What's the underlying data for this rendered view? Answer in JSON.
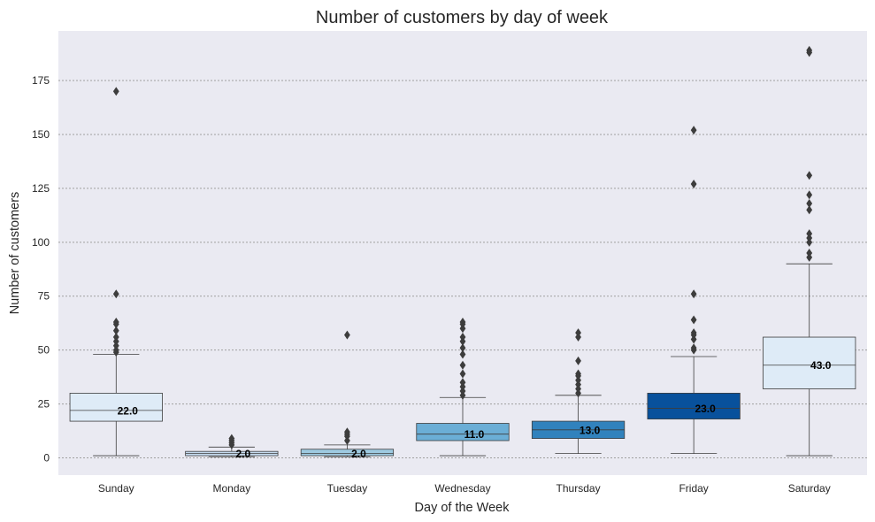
{
  "chart_data": {
    "type": "box",
    "title": "Number of customers by day of week",
    "xlabel": "Day of the Week",
    "ylabel": "Number of customers",
    "ylim": [
      -8,
      198
    ],
    "yticks": [
      0,
      25,
      50,
      75,
      100,
      125,
      150,
      175
    ],
    "grid": "horizontal-dotted",
    "background": "#eaeaf2",
    "categories": [
      "Sunday",
      "Monday",
      "Tuesday",
      "Wednesday",
      "Thursday",
      "Friday",
      "Saturday"
    ],
    "boxes": [
      {
        "category": "Sunday",
        "whisker_low": 1,
        "q1": 17,
        "median": 22,
        "q3": 30,
        "whisker_high": 48,
        "median_label": "22.0",
        "color": "#deebf7",
        "outliers": [
          49,
          50,
          52,
          54,
          56,
          59,
          62,
          63,
          76,
          170
        ]
      },
      {
        "category": "Monday",
        "whisker_low": 0.5,
        "q1": 1,
        "median": 2,
        "q3": 3,
        "whisker_high": 5,
        "median_label": "2.0",
        "color": "#c6dbef",
        "outliers": [
          6,
          7,
          8,
          9
        ]
      },
      {
        "category": "Tuesday",
        "whisker_low": 0.5,
        "q1": 1,
        "median": 2,
        "q3": 4,
        "whisker_high": 6,
        "median_label": "2.0",
        "color": "#9ecae1",
        "outliers": [
          8,
          10,
          11,
          12,
          57
        ]
      },
      {
        "category": "Wednesday",
        "whisker_low": 1,
        "q1": 8,
        "median": 11,
        "q3": 16,
        "whisker_high": 28,
        "median_label": "11.0",
        "color": "#6baed6",
        "outliers": [
          29,
          31,
          33,
          35,
          39,
          43,
          48,
          51,
          54,
          56,
          60,
          62,
          63
        ]
      },
      {
        "category": "Thursday",
        "whisker_low": 2,
        "q1": 9,
        "median": 13,
        "q3": 17,
        "whisker_high": 29,
        "median_label": "13.0",
        "color": "#3182bd",
        "outliers": [
          30,
          32,
          34,
          36,
          38,
          39,
          45,
          56,
          58
        ]
      },
      {
        "category": "Friday",
        "whisker_low": 2,
        "q1": 18,
        "median": 23,
        "q3": 30,
        "whisker_high": 47,
        "median_label": "23.0",
        "color": "#08519c",
        "outliers": [
          50,
          51,
          55,
          57,
          58,
          64,
          76,
          127,
          152
        ]
      },
      {
        "category": "Saturday",
        "whisker_low": 1,
        "q1": 32,
        "median": 43,
        "q3": 56,
        "whisker_high": 90,
        "median_label": "43.0",
        "color": "#deebf7",
        "outliers": [
          93,
          95,
          100,
          102,
          104,
          115,
          118,
          122,
          131,
          188,
          189
        ]
      }
    ]
  }
}
